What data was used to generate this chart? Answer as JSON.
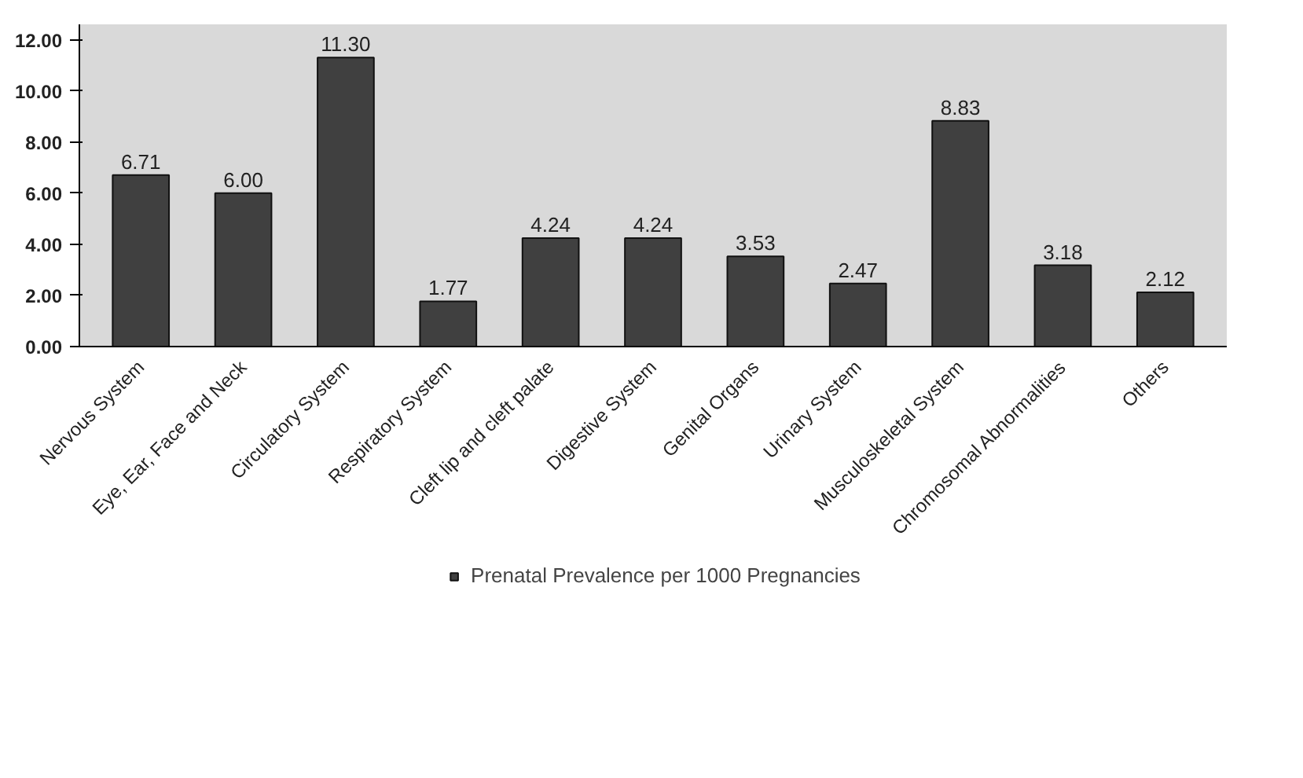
{
  "chart_data": {
    "type": "bar",
    "categories": [
      "Nervous System",
      "Eye, Ear, Face and Neck",
      "Circulatory System",
      "Respiratory System",
      "Cleft lip and cleft palate",
      "Digestive System",
      "Genital Organs",
      "Urinary System",
      "Musculoskeletal System",
      "Chromosomal Abnormalities",
      "Others"
    ],
    "series": [
      {
        "name": "Prenatal Prevalence per 1000 Pregnancies",
        "color": "#404040",
        "values": [
          6.71,
          6.0,
          11.3,
          1.77,
          4.24,
          4.24,
          3.53,
          2.47,
          8.83,
          3.18,
          2.12
        ],
        "value_labels": [
          "6.71",
          "6.00",
          "11.30",
          "1.77",
          "4.24",
          "4.24",
          "3.53",
          "2.47",
          "8.83",
          "3.18",
          "2.12"
        ]
      }
    ],
    "ylim": [
      0,
      12.6
    ],
    "yticks": [
      {
        "value": 0,
        "label": "0.00"
      },
      {
        "value": 2,
        "label": "2.00"
      },
      {
        "value": 4,
        "label": "4.00"
      },
      {
        "value": 6,
        "label": "6.00"
      },
      {
        "value": 8,
        "label": "8.00"
      },
      {
        "value": 10,
        "label": "10.00"
      },
      {
        "value": 12,
        "label": "12.00"
      }
    ],
    "grid": false,
    "legend": "bottom"
  }
}
